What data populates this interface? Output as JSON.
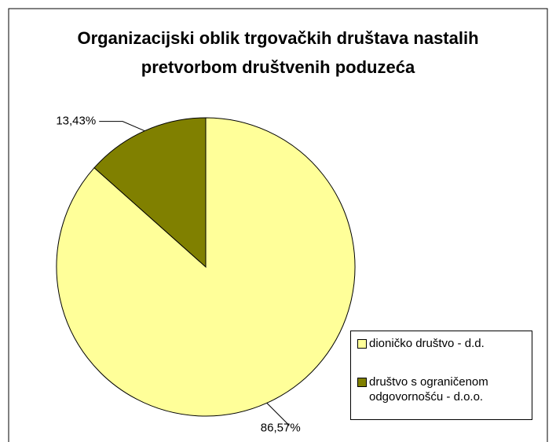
{
  "chart_data": {
    "type": "pie",
    "title": "Organizacijski oblik trgovačkih društava nastalih pretvorbom društvenih poduzeća",
    "categories": [
      "dioničko društvo - d.d.",
      "društvo s ograničenom odgovornošću - d.o.o."
    ],
    "values": [
      86.57,
      13.43
    ],
    "value_labels": [
      "86,57%",
      "13,43%"
    ],
    "colors": [
      "#ffff99",
      "#808000"
    ],
    "legend": "right"
  }
}
